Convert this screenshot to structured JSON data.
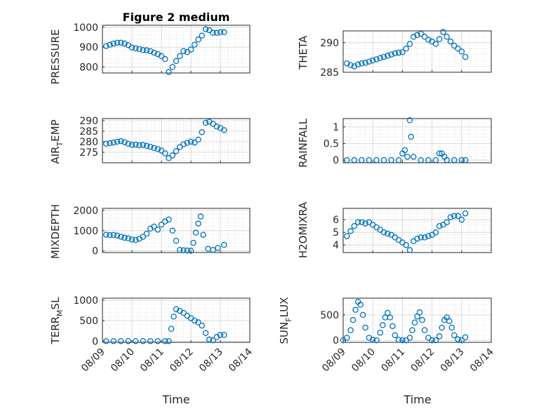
{
  "figure_title": "Figure 2 medium",
  "style": {
    "marker_color": "#0072bd",
    "axis_color": "#262626",
    "grid_color": "#d0d0d0"
  },
  "chart_data": [
    {
      "type": "scatter",
      "title": "Figure 2 medium",
      "xlabel": "",
      "ylabel": "PRESSURE",
      "xlim": [
        "2017-08-09",
        "2017-08-14"
      ],
      "ylim": [
        770,
        1010
      ],
      "yticks": [
        800,
        900,
        1000
      ],
      "ytick_labels": [
        "800",
        "900",
        "1000"
      ],
      "grid": true,
      "show_xtick_labels": false,
      "x": [
        "2017-08-09 03:00",
        "2017-08-09 06:00",
        "2017-08-09 09:00",
        "2017-08-09 12:00",
        "2017-08-09 15:00",
        "2017-08-09 18:00",
        "2017-08-09 21:00",
        "2017-08-10 00:00",
        "2017-08-10 03:00",
        "2017-08-10 06:00",
        "2017-08-10 09:00",
        "2017-08-10 12:00",
        "2017-08-10 15:00",
        "2017-08-10 18:00",
        "2017-08-10 21:00",
        "2017-08-11 00:00",
        "2017-08-11 03:00",
        "2017-08-11 06:00",
        "2017-08-11 09:00",
        "2017-08-11 12:00",
        "2017-08-11 15:00",
        "2017-08-11 18:00",
        "2017-08-11 21:00",
        "2017-08-12 00:00",
        "2017-08-12 03:00",
        "2017-08-12 06:00",
        "2017-08-12 09:00",
        "2017-08-12 12:00",
        "2017-08-12 15:00",
        "2017-08-12 18:00",
        "2017-08-12 21:00",
        "2017-08-13 00:00",
        "2017-08-13 03:00"
      ],
      "y": [
        905,
        912,
        918,
        922,
        922,
        918,
        910,
        898,
        894,
        890,
        885,
        884,
        880,
        872,
        865,
        855,
        840,
        775,
        800,
        830,
        855,
        880,
        875,
        888,
        912,
        938,
        958,
        990,
        985,
        972,
        972,
        975,
        975
      ],
      "series_names": [
        "PRESSURE"
      ]
    },
    {
      "type": "scatter",
      "title": "",
      "xlabel": "",
      "ylabel": "THETA",
      "xlim": [
        "2017-08-09",
        "2017-08-14"
      ],
      "ylim": [
        285,
        292
      ],
      "yticks": [
        285,
        290
      ],
      "ytick_labels": [
        "285",
        "290"
      ],
      "grid": true,
      "show_xtick_labels": false,
      "x": [
        "2017-08-09 03:00",
        "2017-08-09 06:00",
        "2017-08-09 09:00",
        "2017-08-09 12:00",
        "2017-08-09 15:00",
        "2017-08-09 18:00",
        "2017-08-09 21:00",
        "2017-08-10 00:00",
        "2017-08-10 03:00",
        "2017-08-10 06:00",
        "2017-08-10 09:00",
        "2017-08-10 12:00",
        "2017-08-10 15:00",
        "2017-08-10 18:00",
        "2017-08-10 21:00",
        "2017-08-11 00:00",
        "2017-08-11 03:00",
        "2017-08-11 06:00",
        "2017-08-11 09:00",
        "2017-08-11 12:00",
        "2017-08-11 15:00",
        "2017-08-11 18:00",
        "2017-08-11 21:00",
        "2017-08-12 00:00",
        "2017-08-12 03:00",
        "2017-08-12 06:00",
        "2017-08-12 09:00",
        "2017-08-12 12:00",
        "2017-08-12 15:00",
        "2017-08-12 18:00",
        "2017-08-12 21:00",
        "2017-08-13 00:00",
        "2017-08-13 03:00"
      ],
      "y": [
        286.5,
        286.2,
        286.0,
        286.3,
        286.5,
        286.6,
        286.8,
        287.0,
        287.2,
        287.4,
        287.6,
        287.8,
        288.0,
        288.2,
        288.3,
        288.4,
        289.0,
        289.8,
        291.0,
        291.3,
        291.5,
        291.0,
        290.5,
        290.2,
        289.8,
        290.6,
        291.8,
        291.0,
        290.2,
        289.5,
        289.0,
        288.5,
        287.6
      ],
      "series_names": [
        "THETA"
      ]
    },
    {
      "type": "scatter",
      "title": "",
      "xlabel": "",
      "ylabel": "AIR_TEMP",
      "xlim": [
        "2017-08-09",
        "2017-08-14"
      ],
      "ylim": [
        270,
        291
      ],
      "yticks": [
        275,
        280,
        285,
        290
      ],
      "ytick_labels": [
        "275",
        "280",
        "285",
        "290"
      ],
      "grid": true,
      "show_xtick_labels": false,
      "x": [
        "2017-08-09 03:00",
        "2017-08-09 06:00",
        "2017-08-09 09:00",
        "2017-08-09 12:00",
        "2017-08-09 15:00",
        "2017-08-09 18:00",
        "2017-08-09 21:00",
        "2017-08-10 00:00",
        "2017-08-10 03:00",
        "2017-08-10 06:00",
        "2017-08-10 09:00",
        "2017-08-10 12:00",
        "2017-08-10 15:00",
        "2017-08-10 18:00",
        "2017-08-10 21:00",
        "2017-08-11 00:00",
        "2017-08-11 03:00",
        "2017-08-11 06:00",
        "2017-08-11 09:00",
        "2017-08-11 12:00",
        "2017-08-11 15:00",
        "2017-08-11 18:00",
        "2017-08-11 21:00",
        "2017-08-12 00:00",
        "2017-08-12 03:00",
        "2017-08-12 06:00",
        "2017-08-12 09:00",
        "2017-08-12 12:00",
        "2017-08-12 15:00",
        "2017-08-12 18:00",
        "2017-08-12 21:00",
        "2017-08-13 00:00",
        "2017-08-13 03:00"
      ],
      "y": [
        279.0,
        279.3,
        279.6,
        280.0,
        280.3,
        279.8,
        279.0,
        278.5,
        278.6,
        278.3,
        278.4,
        278.0,
        277.6,
        277.0,
        276.5,
        275.8,
        274.5,
        272.2,
        273.5,
        275.5,
        277.5,
        278.8,
        279.5,
        280.0,
        279.6,
        281.0,
        284.5,
        289.0,
        289.5,
        288.5,
        287.2,
        286.5,
        285.5
      ],
      "series_names": [
        "AIR_TEMP"
      ]
    },
    {
      "type": "scatter",
      "title": "",
      "xlabel": "",
      "ylabel": "RAINFALL",
      "xlim": [
        "2017-08-09",
        "2017-08-14"
      ],
      "ylim": [
        -0.08,
        1.25
      ],
      "yticks": [
        0,
        0.5,
        1
      ],
      "ytick_labels": [
        "0",
        "0.5",
        "1"
      ],
      "grid": true,
      "show_xtick_labels": false,
      "x": [
        "2017-08-09 03:00",
        "2017-08-09 09:00",
        "2017-08-09 15:00",
        "2017-08-09 21:00",
        "2017-08-10 03:00",
        "2017-08-10 09:00",
        "2017-08-10 15:00",
        "2017-08-10 21:00",
        "2017-08-11 00:00",
        "2017-08-11 02:00",
        "2017-08-11 04:00",
        "2017-08-11 06:00",
        "2017-08-11 07:00",
        "2017-08-11 09:00",
        "2017-08-11 15:00",
        "2017-08-11 21:00",
        "2017-08-12 03:00",
        "2017-08-12 06:00",
        "2017-08-12 08:00",
        "2017-08-12 10:00",
        "2017-08-12 12:00",
        "2017-08-12 18:00",
        "2017-08-13 00:00",
        "2017-08-13 03:00"
      ],
      "y": [
        0,
        0,
        0,
        0,
        0,
        0,
        0,
        0,
        0.2,
        0.3,
        0.1,
        1.2,
        0.7,
        0.1,
        0,
        0,
        0,
        0.2,
        0.2,
        0.1,
        0,
        0,
        0,
        0
      ],
      "series_names": [
        "RAINFALL"
      ]
    },
    {
      "type": "scatter",
      "title": "",
      "xlabel": "",
      "ylabel": "MIXDEPTH",
      "xlim": [
        "2017-08-09",
        "2017-08-14"
      ],
      "ylim": [
        -80,
        2100
      ],
      "yticks": [
        0,
        1000,
        2000
      ],
      "ytick_labels": [
        "0",
        "1000",
        "2000"
      ],
      "grid": true,
      "show_xtick_labels": false,
      "x": [
        "2017-08-09 03:00",
        "2017-08-09 06:00",
        "2017-08-09 09:00",
        "2017-08-09 12:00",
        "2017-08-09 15:00",
        "2017-08-09 18:00",
        "2017-08-09 21:00",
        "2017-08-10 00:00",
        "2017-08-10 03:00",
        "2017-08-10 06:00",
        "2017-08-10 09:00",
        "2017-08-10 12:00",
        "2017-08-10 15:00",
        "2017-08-10 18:00",
        "2017-08-10 21:00",
        "2017-08-11 00:00",
        "2017-08-11 03:00",
        "2017-08-11 06:00",
        "2017-08-11 09:00",
        "2017-08-11 12:00",
        "2017-08-11 15:00",
        "2017-08-11 18:00",
        "2017-08-11 21:00",
        "2017-08-12 00:00",
        "2017-08-12 02:00",
        "2017-08-12 04:00",
        "2017-08-12 06:00",
        "2017-08-12 08:00",
        "2017-08-12 10:00",
        "2017-08-12 14:00",
        "2017-08-12 18:00",
        "2017-08-12 22:00",
        "2017-08-13 03:00"
      ],
      "y": [
        800,
        780,
        790,
        760,
        700,
        650,
        620,
        560,
        540,
        600,
        700,
        850,
        1100,
        1200,
        1050,
        1300,
        1450,
        1550,
        1000,
        500,
        50,
        30,
        20,
        10,
        400,
        900,
        1350,
        1700,
        800,
        100,
        50,
        150,
        300
      ],
      "series_names": [
        "MIXDEPTH"
      ]
    },
    {
      "type": "scatter",
      "title": "",
      "xlabel": "",
      "ylabel": "H2OMIXRA",
      "xlim": [
        "2017-08-09",
        "2017-08-14"
      ],
      "ylim": [
        3.4,
        6.9
      ],
      "yticks": [
        4,
        5,
        6
      ],
      "ytick_labels": [
        "4",
        "5",
        "6"
      ],
      "grid": true,
      "show_xtick_labels": false,
      "x": [
        "2017-08-09 03:00",
        "2017-08-09 06:00",
        "2017-08-09 09:00",
        "2017-08-09 12:00",
        "2017-08-09 15:00",
        "2017-08-09 18:00",
        "2017-08-09 21:00",
        "2017-08-10 00:00",
        "2017-08-10 03:00",
        "2017-08-10 06:00",
        "2017-08-10 09:00",
        "2017-08-10 12:00",
        "2017-08-10 15:00",
        "2017-08-10 18:00",
        "2017-08-10 21:00",
        "2017-08-11 00:00",
        "2017-08-11 03:00",
        "2017-08-11 06:00",
        "2017-08-11 09:00",
        "2017-08-11 12:00",
        "2017-08-11 15:00",
        "2017-08-11 18:00",
        "2017-08-11 21:00",
        "2017-08-12 00:00",
        "2017-08-12 03:00",
        "2017-08-12 06:00",
        "2017-08-12 09:00",
        "2017-08-12 12:00",
        "2017-08-12 15:00",
        "2017-08-12 18:00",
        "2017-08-12 21:00",
        "2017-08-13 00:00",
        "2017-08-13 03:00"
      ],
      "y": [
        4.7,
        5.1,
        5.5,
        5.8,
        5.8,
        5.7,
        5.8,
        5.6,
        5.4,
        5.2,
        5.0,
        4.9,
        4.8,
        4.6,
        4.4,
        4.2,
        4.0,
        3.6,
        4.3,
        4.5,
        4.6,
        4.6,
        4.7,
        4.8,
        5.0,
        5.5,
        5.6,
        5.8,
        6.2,
        6.3,
        6.3,
        6.0,
        6.5
      ],
      "series_names": [
        "H2OMIXRA"
      ]
    },
    {
      "type": "scatter",
      "title": "",
      "xlabel": "Time",
      "ylabel": "TERR_MSL",
      "xlim": [
        "2017-08-09",
        "2017-08-14"
      ],
      "ylim": [
        -30,
        1050
      ],
      "yticks": [
        0,
        500,
        1000
      ],
      "ytick_labels": [
        "0",
        "500",
        "1000"
      ],
      "grid": true,
      "show_xtick_labels": true,
      "xticks": [
        "2017-08-09",
        "2017-08-10",
        "2017-08-11",
        "2017-08-12",
        "2017-08-13",
        "2017-08-14"
      ],
      "xtick_labels": [
        "08/09",
        "08/10",
        "08/11",
        "08/12",
        "08/13",
        "08/14"
      ],
      "x": [
        "2017-08-09 03:00",
        "2017-08-09 09:00",
        "2017-08-09 15:00",
        "2017-08-09 21:00",
        "2017-08-10 03:00",
        "2017-08-10 09:00",
        "2017-08-10 15:00",
        "2017-08-10 21:00",
        "2017-08-11 03:00",
        "2017-08-11 06:00",
        "2017-08-11 08:00",
        "2017-08-11 10:00",
        "2017-08-11 12:00",
        "2017-08-11 15:00",
        "2017-08-11 18:00",
        "2017-08-11 21:00",
        "2017-08-12 00:00",
        "2017-08-12 03:00",
        "2017-08-12 06:00",
        "2017-08-12 09:00",
        "2017-08-12 12:00",
        "2017-08-12 15:00",
        "2017-08-12 18:00",
        "2017-08-12 21:00",
        "2017-08-13 00:00",
        "2017-08-13 03:00"
      ],
      "y": [
        0,
        0,
        0,
        0,
        0,
        0,
        0,
        0,
        0,
        0,
        300,
        600,
        780,
        740,
        690,
        620,
        560,
        500,
        460,
        380,
        200,
        40,
        20,
        100,
        150,
        150
      ],
      "series_names": [
        "TERR_MSL"
      ]
    },
    {
      "type": "scatter",
      "title": "",
      "xlabel": "Time",
      "ylabel": "SUN_FLUX",
      "xlim": [
        "2017-08-09",
        "2017-08-14"
      ],
      "ylim": [
        -40,
        830
      ],
      "yticks": [
        0,
        500
      ],
      "ytick_labels": [
        "0",
        "500"
      ],
      "grid": true,
      "show_xtick_labels": true,
      "xticks": [
        "2017-08-09",
        "2017-08-10",
        "2017-08-11",
        "2017-08-12",
        "2017-08-13",
        "2017-08-14"
      ],
      "xtick_labels": [
        "08/09",
        "08/10",
        "08/11",
        "08/12",
        "08/13",
        "08/14"
      ],
      "x": [
        "2017-08-09 00:00",
        "2017-08-09 03:00",
        "2017-08-09 06:00",
        "2017-08-09 08:00",
        "2017-08-09 10:00",
        "2017-08-09 12:00",
        "2017-08-09 14:00",
        "2017-08-09 16:00",
        "2017-08-09 18:00",
        "2017-08-09 21:00",
        "2017-08-10 00:00",
        "2017-08-10 03:00",
        "2017-08-10 06:00",
        "2017-08-10 08:00",
        "2017-08-10 10:00",
        "2017-08-10 12:00",
        "2017-08-10 14:00",
        "2017-08-10 16:00",
        "2017-08-10 18:00",
        "2017-08-10 21:00",
        "2017-08-11 00:00",
        "2017-08-11 03:00",
        "2017-08-11 06:00",
        "2017-08-11 08:00",
        "2017-08-11 10:00",
        "2017-08-11 12:00",
        "2017-08-11 14:00",
        "2017-08-11 16:00",
        "2017-08-11 18:00",
        "2017-08-11 21:00",
        "2017-08-12 00:00",
        "2017-08-12 03:00",
        "2017-08-12 06:00",
        "2017-08-12 08:00",
        "2017-08-12 10:00",
        "2017-08-12 12:00",
        "2017-08-12 14:00",
        "2017-08-12 16:00",
        "2017-08-12 18:00",
        "2017-08-12 21:00",
        "2017-08-13 00:00",
        "2017-08-13 03:00"
      ],
      "y": [
        0,
        50,
        200,
        400,
        600,
        760,
        700,
        500,
        250,
        50,
        10,
        0,
        150,
        300,
        450,
        540,
        450,
        280,
        100,
        10,
        0,
        0,
        50,
        200,
        350,
        470,
        550,
        400,
        200,
        50,
        0,
        0,
        80,
        250,
        400,
        450,
        380,
        250,
        100,
        20,
        0,
        60
      ],
      "series_names": [
        "SUN_FLUX"
      ]
    }
  ]
}
